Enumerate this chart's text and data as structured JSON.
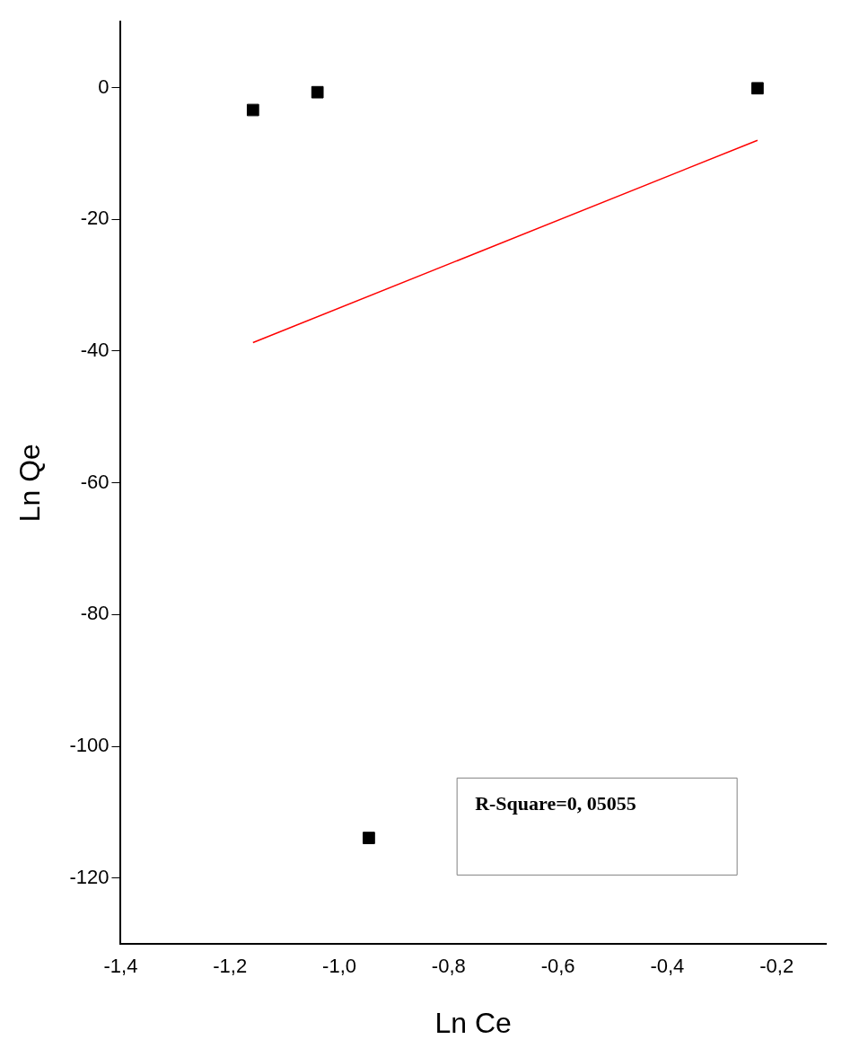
{
  "chart_data": {
    "type": "scatter",
    "xlabel": "Ln Ce",
    "ylabel": "Ln Qe",
    "xlim": [
      -1.4,
      -0.11
    ],
    "ylim": [
      -130,
      10
    ],
    "xticks": [
      {
        "value": -1.4,
        "label": "-1,4"
      },
      {
        "value": -1.2,
        "label": "-1,2"
      },
      {
        "value": -1.0,
        "label": "-1,0"
      },
      {
        "value": -0.8,
        "label": "-0,8"
      },
      {
        "value": -0.6,
        "label": "-0,6"
      },
      {
        "value": -0.4,
        "label": "-0,4"
      },
      {
        "value": -0.2,
        "label": "-0,2"
      }
    ],
    "yticks": [
      0,
      -20,
      -40,
      -60,
      -80,
      -100,
      -120
    ],
    "grid": false,
    "legend": false,
    "marker": "square",
    "series": [
      {
        "type": "scatter",
        "color": "#000000",
        "x": [
          -1.158,
          -1.04,
          -0.946,
          -0.235
        ],
        "values": [
          -3.4,
          -0.7,
          -113.9,
          -0.1
        ]
      },
      {
        "type": "line",
        "color": "#ff0000",
        "x": [
          -1.158,
          -0.235
        ],
        "values": [
          -38.7,
          -8.0
        ],
        "marker": "none"
      }
    ],
    "annotations": [
      "R-Square=0, 05055"
    ]
  }
}
